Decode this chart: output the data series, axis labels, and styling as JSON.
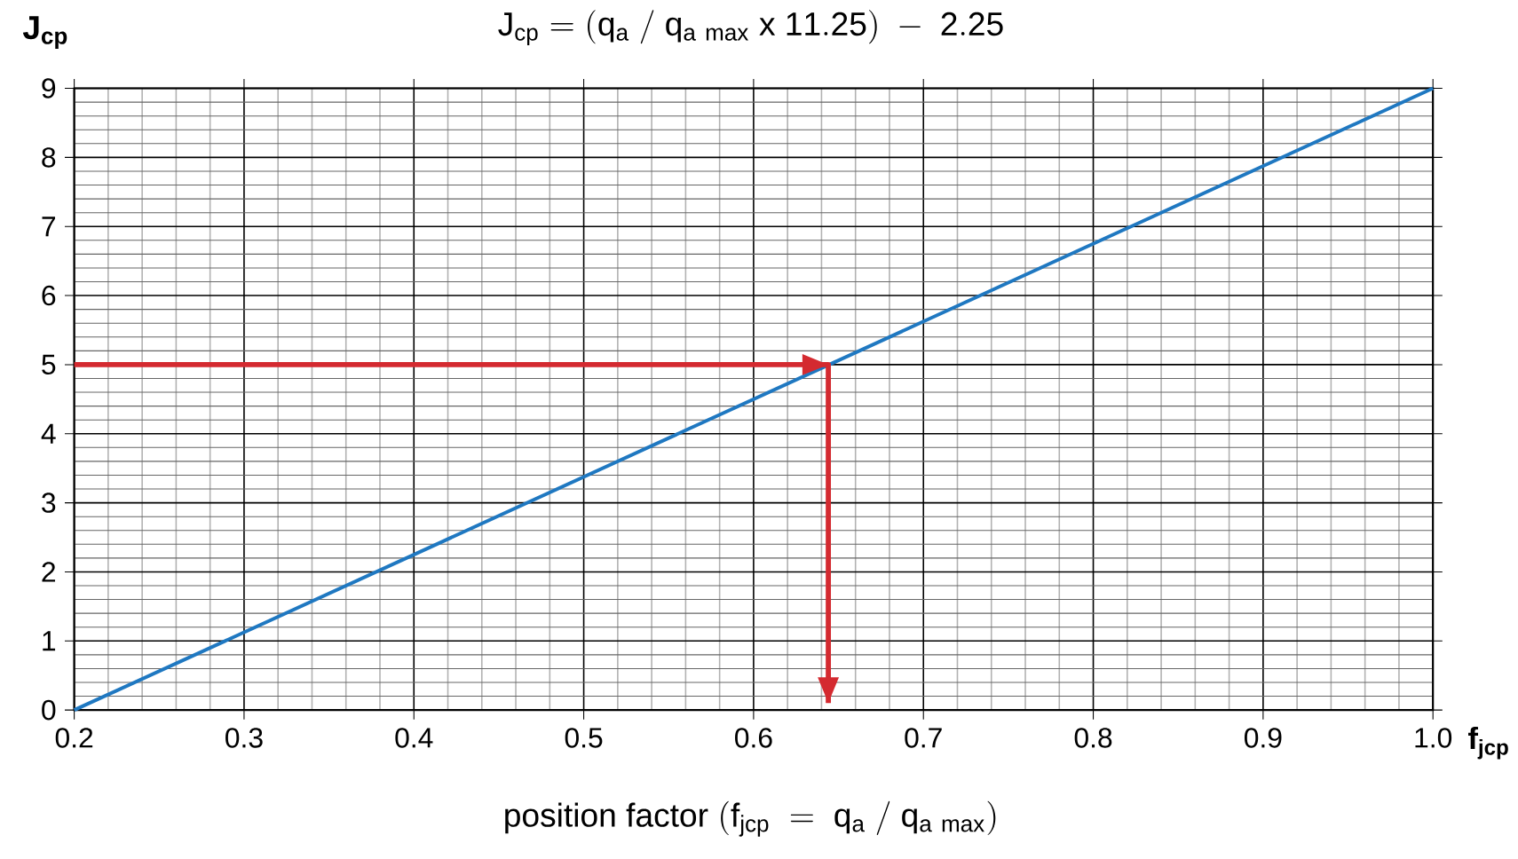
{
  "chart_data": {
    "type": "line",
    "ylabel": "J$_{cp}$",
    "xlabel": "\\mathrm{position\\ factor\\ (f_{jcp}\\ =\\ q_{a}\\ /\\ q_{a\\ max})}",
    "annotations": [
      "\\mathrm{J_{cp} = (q_{a}\\ /\\ q_{a\\ max}\\ x\\ 11.25)\\ -\\ 2.25}",
      "f$_{jcp}$"
    ],
    "series": [
      {
        "x": [
          0.2,
          1.0
        ],
        "values": [
          0,
          9
        ],
        "color": "#1f78c1"
      },
      {
        "x": [
          0.2,
          0.644,
          0.644
        ],
        "values": [
          5,
          5,
          0.1
        ],
        "color": "#d42a30"
      }
    ],
    "xlim": [
      0.2,
      1.0
    ],
    "ylim": [
      0,
      9
    ],
    "xticks": [
      0.2,
      0.3,
      0.4,
      0.5,
      0.6,
      0.7,
      0.8,
      0.9,
      {
        "value": 1.0,
        "label": "1.0"
      }
    ],
    "yticks": [
      0,
      1,
      2,
      3,
      4,
      5,
      6,
      7,
      8,
      9
    ],
    "grid": true,
    "marker": "none",
    "line_style": "solid"
  }
}
